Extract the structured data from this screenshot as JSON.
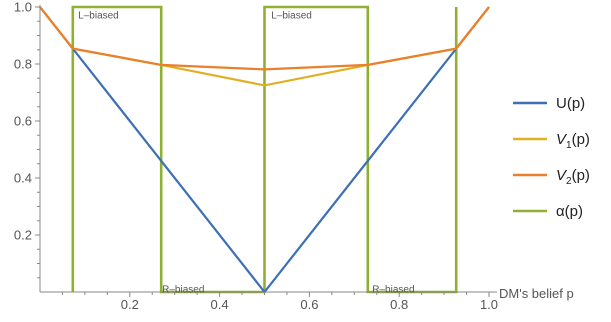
{
  "chart_data": {
    "type": "line",
    "xlabel": "DM's belief p",
    "ylabel": "",
    "xlim": [
      0,
      1
    ],
    "ylim": [
      0,
      1
    ],
    "x_ticks": [
      "0.2",
      "0.4",
      "0.6",
      "0.8",
      "1.0"
    ],
    "y_ticks": [
      "0.2",
      "0.4",
      "0.6",
      "0.8",
      "1.0"
    ],
    "grid": false,
    "legend_position": "right",
    "reference_lines_x": [
      0.073,
      0.927
    ],
    "region_labels": [
      {
        "text": "L–biased",
        "x": 0.085,
        "y": 0.985
      },
      {
        "text": "R–biased",
        "x": 0.272,
        "y": 0.022
      },
      {
        "text": "L–biased",
        "x": 0.515,
        "y": 0.985
      },
      {
        "text": "R–biased",
        "x": 0.74,
        "y": 0.022
      }
    ],
    "series": [
      {
        "name": "U(p)",
        "legend_main": "U",
        "legend_sub": "",
        "legend_tail": "(p)",
        "color": "#3d6fb6",
        "x": [
          0,
          0.5,
          1
        ],
        "y": [
          1,
          0,
          1
        ]
      },
      {
        "name": "V1(p)",
        "legend_main": "V",
        "legend_sub": "1",
        "legend_tail": "(p)",
        "color": "#e0b024",
        "x": [
          0,
          0.073,
          0.27,
          0.5,
          0.73,
          0.927,
          1
        ],
        "y": [
          1,
          0.854,
          0.797,
          0.725,
          0.797,
          0.854,
          1
        ]
      },
      {
        "name": "V2(p)",
        "legend_main": "V",
        "legend_sub": "2",
        "legend_tail": "(p)",
        "color": "#eb7f2b",
        "x": [
          0,
          0.073,
          0.27,
          0.5,
          0.73,
          0.927,
          1
        ],
        "y": [
          1,
          0.854,
          0.797,
          0.781,
          0.797,
          0.854,
          1
        ]
      },
      {
        "name": "α(p)",
        "legend_main": "α",
        "legend_sub": "",
        "legend_tail": "(p)",
        "color": "#8fb032",
        "x": [
          0.073,
          0.073,
          0.27,
          0.27,
          0.5,
          0.5,
          0.73,
          0.73,
          0.927,
          0.927
        ],
        "y": [
          0,
          1,
          1,
          0,
          0,
          1,
          1,
          0,
          0,
          1
        ]
      }
    ]
  }
}
